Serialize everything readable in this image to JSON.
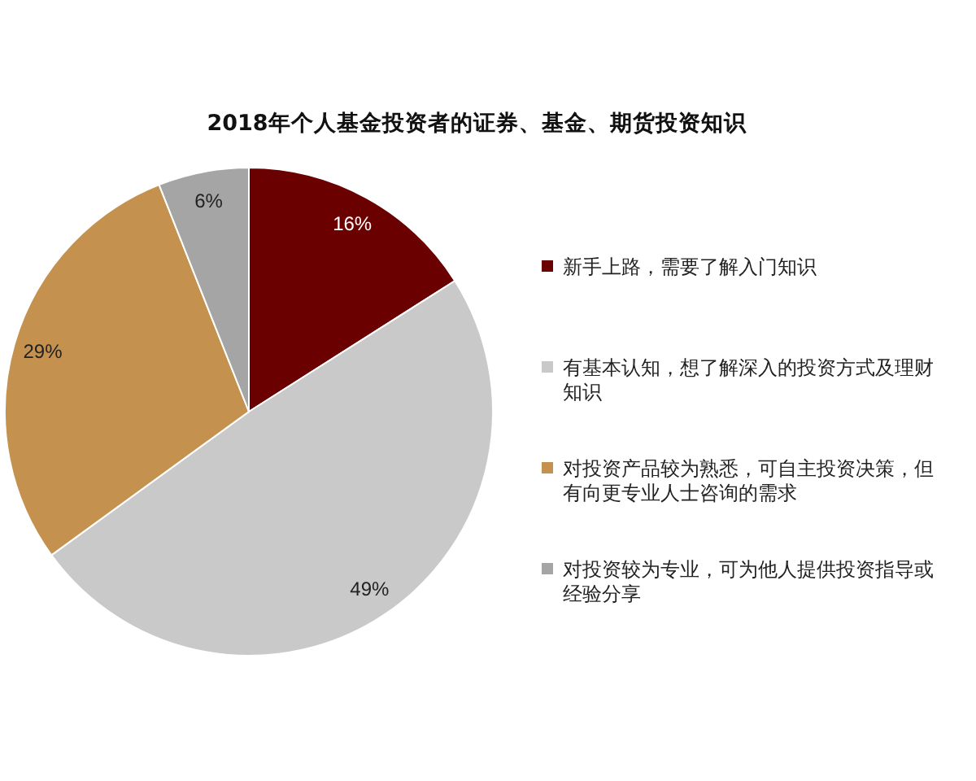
{
  "chart_data": {
    "type": "pie",
    "title": "2018年个人基金投资者的证券、基金、期货投资知识",
    "categories": [
      "新手上路，需要了解入门知识",
      "有基本认知，想了解深入的投资方式及理财知识",
      "对投资产品较为熟悉，可自主投资决策，但有向更专业人士咨询的需求",
      "对投资较为专业，可为他人提供投资指导或经验分享"
    ],
    "values": [
      16,
      49,
      29,
      6
    ],
    "colors": [
      "#6b0000",
      "#c9c9c9",
      "#c4914f",
      "#a5a5a5"
    ],
    "value_labels": [
      "16%",
      "49%",
      "29%",
      "6%"
    ],
    "legend": "right"
  }
}
